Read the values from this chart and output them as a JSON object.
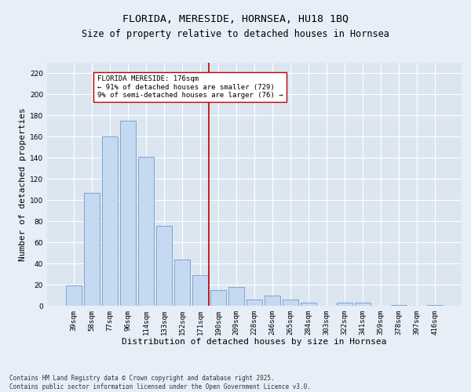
{
  "title": "FLORIDA, MERESIDE, HORNSEA, HU18 1BQ",
  "subtitle": "Size of property relative to detached houses in Hornsea",
  "xlabel": "Distribution of detached houses by size in Hornsea",
  "ylabel": "Number of detached properties",
  "bar_color": "#c5d9f1",
  "bar_edge_color": "#5b8cc8",
  "categories": [
    "39sqm",
    "58sqm",
    "77sqm",
    "96sqm",
    "114sqm",
    "133sqm",
    "152sqm",
    "171sqm",
    "190sqm",
    "209sqm",
    "228sqm",
    "246sqm",
    "265sqm",
    "284sqm",
    "303sqm",
    "322sqm",
    "341sqm",
    "359sqm",
    "378sqm",
    "397sqm",
    "416sqm"
  ],
  "values": [
    19,
    107,
    160,
    175,
    141,
    76,
    44,
    29,
    15,
    18,
    6,
    10,
    6,
    3,
    0,
    3,
    3,
    0,
    1,
    0,
    1
  ],
  "ylim": [
    0,
    230
  ],
  "yticks": [
    0,
    20,
    40,
    60,
    80,
    100,
    120,
    140,
    160,
    180,
    200,
    220
  ],
  "vline_x": 7.5,
  "vline_color": "#c00000",
  "annotation_text": "FLORIDA MERESIDE: 176sqm\n← 91% of detached houses are smaller (729)\n9% of semi-detached houses are larger (76) →",
  "annotation_box_color": "#ffffff",
  "annotation_box_edge": "#c00000",
  "bg_color": "#e8eef7",
  "plot_bg_color": "#dce6f1",
  "footer": "Contains HM Land Registry data © Crown copyright and database right 2025.\nContains public sector information licensed under the Open Government Licence v3.0.",
  "grid_color": "#ffffff",
  "title_fontsize": 9.5,
  "subtitle_fontsize": 8.5,
  "axis_label_fontsize": 8,
  "tick_fontsize": 6.5,
  "annotation_fontsize": 6.5,
  "footer_fontsize": 5.5
}
